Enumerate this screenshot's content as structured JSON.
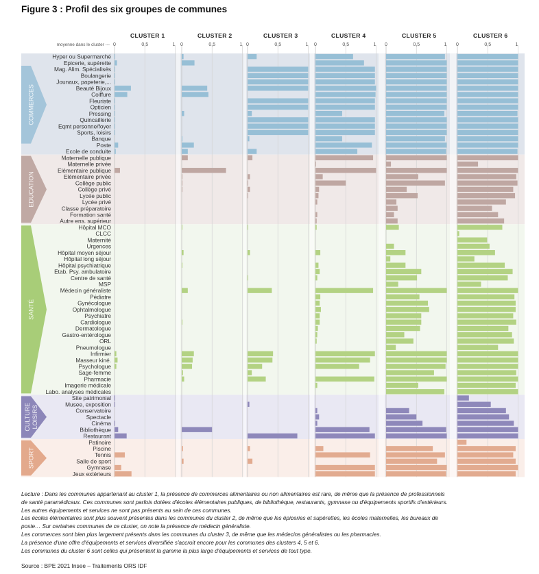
{
  "title": "Figure 3 : Profil des six groupes de communes",
  "chart_data": {
    "type": "bar",
    "orientation": "horizontal",
    "title": "Figure 3 : Profil des six groupes de communes",
    "axis_caption": "moyenne dans le cluster ---",
    "xlim": [
      0,
      1
    ],
    "ticks": [
      "0",
      "0,5",
      "1"
    ],
    "grid": true,
    "clusters": [
      "CLUSTER 1",
      "CLUSTER 2",
      "CLUSTER 3",
      "CLUSTER 4",
      "CLUSTER 5",
      "CLUSTER 6"
    ],
    "sections": [
      {
        "name": "COMMERCES",
        "color": "#97bfd6",
        "bg": "#dfe4ec",
        "tab": "#a4c5da",
        "rows": [
          {
            "label": "Hyper ou Supermarché",
            "values": [
              0.01,
              0.03,
              0.15,
              0.62,
              0.97,
              1.0
            ]
          },
          {
            "label": "Epicerie, supérette",
            "values": [
              0.04,
              0.21,
              0.0,
              0.8,
              1.0,
              1.0
            ]
          },
          {
            "label": "Mag. Alim. Spécialisés",
            "values": [
              0.01,
              0.0,
              1.0,
              0.98,
              1.0,
              1.0
            ]
          },
          {
            "label": "Boulangerie",
            "values": [
              0.01,
              0.0,
              1.0,
              0.98,
              1.0,
              1.0
            ]
          },
          {
            "label": "Jounaux, papeterie,...",
            "values": [
              0.01,
              0.0,
              1.0,
              0.98,
              1.0,
              1.0
            ]
          },
          {
            "label": "Beauté Bijoux",
            "values": [
              0.27,
              0.42,
              1.0,
              1.0,
              1.0,
              1.0
            ]
          },
          {
            "label": "Coiffure",
            "values": [
              0.21,
              0.44,
              0.0,
              0.99,
              1.0,
              1.0
            ]
          },
          {
            "label": "Fleuriste",
            "values": [
              0.01,
              0.0,
              1.0,
              0.98,
              1.0,
              1.0
            ]
          },
          {
            "label": "Opticien",
            "values": [
              0.01,
              0.0,
              1.0,
              0.98,
              1.0,
              1.0
            ]
          },
          {
            "label": "Pressing",
            "values": [
              0.01,
              0.04,
              0.07,
              0.44,
              0.96,
              0.99
            ]
          },
          {
            "label": "Quincaillerie",
            "values": [
              0.01,
              0.0,
              1.0,
              0.98,
              1.0,
              1.0
            ]
          },
          {
            "label": "Eqmt personne/foyer",
            "values": [
              0.01,
              0.0,
              1.0,
              0.98,
              1.0,
              1.0
            ]
          },
          {
            "label": "Sports, loisirs",
            "values": [
              0.01,
              0.0,
              1.0,
              0.98,
              1.0,
              1.0
            ]
          },
          {
            "label": "Banque",
            "values": [
              0.0,
              0.01,
              0.03,
              0.44,
              0.97,
              1.0
            ]
          },
          {
            "label": "Poste",
            "values": [
              0.06,
              0.2,
              0.0,
              0.93,
              1.0,
              1.0
            ]
          },
          {
            "label": "Ecole de conduite",
            "values": [
              0.02,
              0.1,
              0.15,
              0.69,
              0.99,
              0.99
            ]
          }
        ]
      },
      {
        "name": "EDUCATION",
        "color": "#bfa7a2",
        "bg": "#f0e9e8",
        "tab": "#c0a9a4",
        "rows": [
          {
            "label": "Maternelle publique",
            "values": [
              0.0,
              0.1,
              0.08,
              0.95,
              1.0,
              1.0
            ]
          },
          {
            "label": "Maternelle privée",
            "values": [
              0.0,
              0.0,
              0.0,
              0.01,
              0.08,
              0.34
            ]
          },
          {
            "label": "Elémentaire publique",
            "values": [
              0.09,
              0.73,
              0.0,
              1.0,
              1.0,
              1.0
            ]
          },
          {
            "label": "Elémentaire privée",
            "values": [
              0.0,
              0.01,
              0.04,
              0.12,
              0.53,
              0.97
            ]
          },
          {
            "label": "Collège public",
            "values": [
              0.0,
              0.01,
              0.01,
              0.5,
              0.97,
              0.99
            ]
          },
          {
            "label": "Collège privé",
            "values": [
              0.0,
              0.01,
              0.04,
              0.06,
              0.34,
              0.92
            ]
          },
          {
            "label": "Lycée public",
            "values": [
              0.0,
              0.0,
              0.01,
              0.05,
              0.52,
              0.95
            ]
          },
          {
            "label": "Lycée privé",
            "values": [
              0.0,
              0.0,
              0.0,
              0.03,
              0.17,
              0.8
            ]
          },
          {
            "label": "Classe préparatoire",
            "values": [
              0.0,
              0.0,
              0.0,
              0.0,
              0.19,
              0.57
            ]
          },
          {
            "label": "Formation santé",
            "values": [
              0.0,
              0.0,
              0.0,
              0.03,
              0.13,
              0.67
            ]
          },
          {
            "label": "Autre ens. supérieur",
            "values": [
              0.0,
              0.0,
              0.0,
              0.02,
              0.19,
              0.77
            ]
          }
        ]
      },
      {
        "name": "SANTÉ",
        "color": "#b3d283",
        "bg": "#f2f7ee",
        "tab": "#a8cd78",
        "rows": [
          {
            "label": "Hôpital MCO",
            "values": [
              0.0,
              0.01,
              0.01,
              0.02,
              0.21,
              0.74
            ]
          },
          {
            "label": "CLCC",
            "values": [
              0.0,
              0.0,
              0.0,
              0.0,
              0.0,
              0.03
            ]
          },
          {
            "label": "Maternité",
            "values": [
              0.0,
              0.0,
              0.0,
              0.0,
              0.0,
              0.49
            ]
          },
          {
            "label": "Urgences",
            "values": [
              0.0,
              0.0,
              0.0,
              0.0,
              0.13,
              0.53
            ]
          },
          {
            "label": "Hôpital moyen séjour",
            "values": [
              0.0,
              0.03,
              0.04,
              0.08,
              0.32,
              0.62
            ]
          },
          {
            "label": "Hôpital long séjour",
            "values": [
              0.0,
              0.0,
              0.0,
              0.0,
              0.07,
              0.28
            ]
          },
          {
            "label": "Hôpital psychiatrique",
            "values": [
              0.0,
              0.01,
              0.0,
              0.05,
              0.32,
              0.78
            ]
          },
          {
            "label": "Etab. Psy. ambulatoire",
            "values": [
              0.0,
              0.0,
              0.0,
              0.07,
              0.58,
              0.91
            ]
          },
          {
            "label": "Centre de santé",
            "values": [
              0.0,
              0.0,
              0.01,
              0.03,
              0.51,
              0.83
            ]
          },
          {
            "label": "MSP",
            "values": [
              0.0,
              0.0,
              0.0,
              0.0,
              0.2,
              0.39
            ]
          },
          {
            "label": "Médecin généraliste",
            "values": [
              0.0,
              0.1,
              0.4,
              0.95,
              1.0,
              1.0
            ]
          },
          {
            "label": "Pédiatre",
            "values": [
              0.0,
              0.0,
              0.0,
              0.08,
              0.55,
              0.94
            ]
          },
          {
            "label": "Gynécologue",
            "values": [
              0.0,
              0.0,
              0.0,
              0.07,
              0.69,
              0.96
            ]
          },
          {
            "label": "Ophtalmologue",
            "values": [
              0.0,
              0.0,
              0.0,
              0.09,
              0.71,
              0.96
            ]
          },
          {
            "label": "Psychiatre",
            "values": [
              0.0,
              0.0,
              0.0,
              0.07,
              0.58,
              0.92
            ]
          },
          {
            "label": "Cardiologue",
            "values": [
              0.0,
              0.01,
              0.0,
              0.07,
              0.58,
              0.97
            ]
          },
          {
            "label": "Dermatologue",
            "values": [
              0.0,
              0.0,
              0.0,
              0.04,
              0.56,
              0.84
            ]
          },
          {
            "label": "Gastro-entérologue",
            "values": [
              0.0,
              0.0,
              0.0,
              0.03,
              0.3,
              0.9
            ]
          },
          {
            "label": "ORL",
            "values": [
              0.0,
              0.0,
              0.0,
              0.02,
              0.45,
              0.93
            ]
          },
          {
            "label": "Pneumologue",
            "values": [
              0.0,
              0.0,
              0.0,
              0.0,
              0.16,
              0.67
            ]
          },
          {
            "label": "Infirmier",
            "values": [
              0.03,
              0.2,
              0.42,
              0.98,
              1.0,
              1.0
            ]
          },
          {
            "label": "Masseur kiné.",
            "values": [
              0.05,
              0.18,
              0.41,
              0.9,
              1.0,
              1.0
            ]
          },
          {
            "label": "Psychologue",
            "values": [
              0.03,
              0.17,
              0.24,
              0.72,
              0.98,
              1.0
            ]
          },
          {
            "label": "Sage-femme",
            "values": [
              0.0,
              0.02,
              0.07,
              0.0,
              0.79,
              0.97
            ]
          },
          {
            "label": "Pharmacie",
            "values": [
              0.0,
              0.04,
              0.3,
              0.97,
              1.0,
              1.0
            ]
          },
          {
            "label": "Imagerie médicale",
            "values": [
              0.0,
              0.0,
              0.0,
              0.03,
              0.53,
              0.96
            ]
          },
          {
            "label": "Labo. analyses médicales",
            "values": [
              0.0,
              0.0,
              0.0,
              0.0,
              0.96,
              1.0
            ]
          }
        ]
      },
      {
        "name": "CULTURE LOISIRS",
        "color": "#8e88ba",
        "bg": "#e9e8f3",
        "tab": "#8c86b9",
        "rows": [
          {
            "label": "Site patrimonial",
            "values": [
              0.01,
              0.0,
              0.0,
              0.0,
              0.0,
              0.19
            ]
          },
          {
            "label": "Musee, exposition",
            "values": [
              0.01,
              0.0,
              0.03,
              0.0,
              0.0,
              0.55
            ]
          },
          {
            "label": "Conservatoire",
            "values": [
              0.0,
              0.0,
              0.0,
              0.03,
              0.38,
              0.8
            ]
          },
          {
            "label": "Spectacle",
            "values": [
              0.0,
              0.0,
              0.0,
              0.06,
              0.5,
              0.85
            ]
          },
          {
            "label": "Cinéma",
            "values": [
              0.01,
              0.0,
              0.0,
              0.03,
              0.6,
              0.93
            ]
          },
          {
            "label": "Bibliothèque",
            "values": [
              0.06,
              0.5,
              0.0,
              0.89,
              0.99,
              1.0
            ]
          },
          {
            "label": "Restaurant",
            "values": [
              0.2,
              0.0,
              0.82,
              0.98,
              1.0,
              1.0
            ]
          }
        ]
      },
      {
        "name": "SPORT",
        "color": "#e2ab90",
        "bg": "#faeee9",
        "tab": "#e3a98c",
        "rows": [
          {
            "label": "Patinoire",
            "values": [
              0.0,
              0.0,
              0.0,
              0.0,
              0.0,
              0.15
            ]
          },
          {
            "label": "Piscine",
            "values": [
              0.0,
              0.02,
              0.04,
              0.13,
              0.77,
              0.96
            ]
          },
          {
            "label": "Tennis",
            "values": [
              0.17,
              0.0,
              0.0,
              0.9,
              0.97,
              0.92
            ]
          },
          {
            "label": "Salle de sport",
            "values": [
              0.0,
              0.03,
              0.08,
              0.0,
              0.84,
              0.96
            ]
          },
          {
            "label": "Gymnase",
            "values": [
              0.11,
              0.0,
              0.0,
              0.98,
              1.0,
              1.0
            ]
          },
          {
            "label": "Jeux extérieurs",
            "values": [
              0.28,
              0.0,
              0.0,
              0.98,
              0.99,
              0.96
            ]
          }
        ]
      }
    ]
  },
  "notes": [
    "Lecture : Dans les communes appartenant au cluster 1, la présence de commerces alimentaires ou non alimentaires est rare, de même que la présence de professionnels",
    "de santé paramédicaux. Ces communes sont parfois dotées d'écoles élémentaires publiques, de bibliothèque, restaurants, gymnase ou d'équipements sportifs d'extérieurs.",
    "Les autres équipements et services ne sont pas présents au sein de ces communes.",
    "Les écoles élémentaires sont plus souvent présentes dans les communes du cluster 2, de même que les épiceries et supérettes, les écoles maternelles, les bureaux de",
    "poste… Sur certaines communes de ce cluster, on note la présence de médecin généraliste.",
    "Les commerces sont bien plus largement présents dans les communes du cluster 3, de même que les médecins généralistes ou les pharmacies.",
    "La présence d'une offre d'équipements et services diversifiée s'accroit encore pour les communes des clusters 4, 5 et 6.",
    "Les communes du cluster 6 sont celles qui présentent la gamme la plus large d'équipements et services de tout type."
  ],
  "source": "Source : BPE 2021 Insee – Traitements ORS IDF"
}
